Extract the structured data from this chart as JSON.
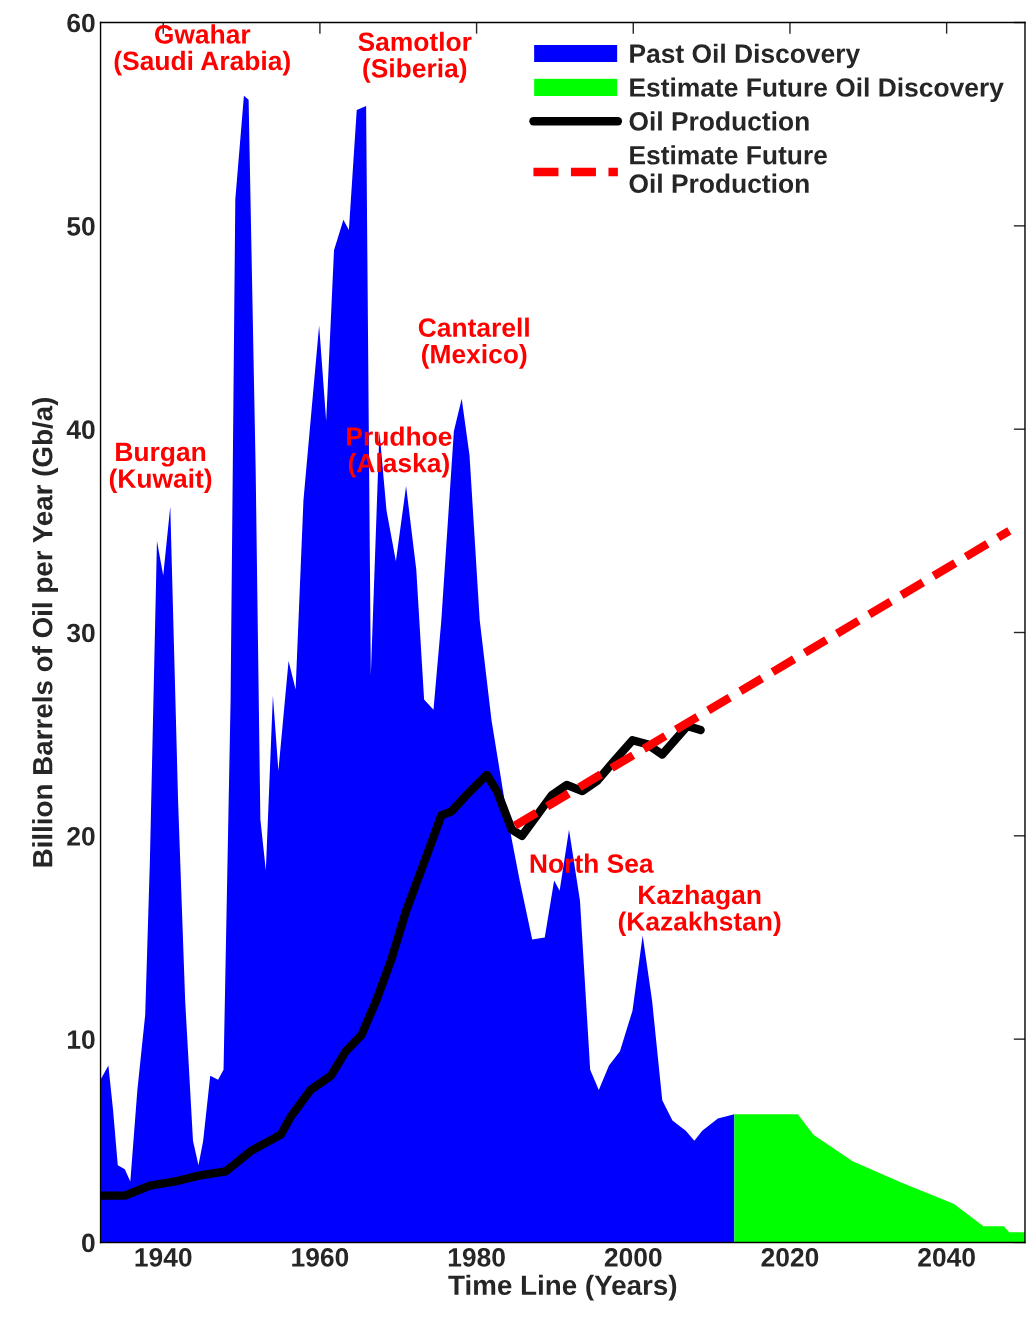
{
  "chart_data": {
    "type": "area",
    "xlabel": "Time Line (Years)",
    "ylabel": "Billion Barrels of Oil per Year (Gb/a)",
    "xlim": [
      1932,
      2050
    ],
    "ylim": [
      0,
      60
    ],
    "xticks": [
      1940,
      1960,
      1980,
      2000,
      2020,
      2040
    ],
    "yticks": [
      0,
      10,
      20,
      30,
      40,
      50,
      60
    ],
    "grid": false,
    "legend": "top right",
    "series": [
      {
        "name": "Past Oil Discovery",
        "color": "#0000ff",
        "x": [
          1932,
          1933,
          1933.6,
          1934.2,
          1935.1,
          1935.8,
          1936.7,
          1937.7,
          1938.3,
          1939.2,
          1940,
          1940.9,
          1941.9,
          1942.8,
          1943.8,
          1944.5,
          1945.1,
          1946,
          1947,
          1947.7,
          1948.6,
          1949.2,
          1950.3,
          1950.9,
          1951.8,
          1952.4,
          1953.1,
          1954,
          1954.7,
          1956,
          1956.9,
          1957.9,
          1959.9,
          1960.8,
          1961.8,
          1963,
          1963.7,
          1964.7,
          1965.9,
          1966.5,
          1967.6,
          1968.5,
          1969.7,
          1971,
          1972.3,
          1973.3,
          1974.5,
          1975.5,
          1977.1,
          1978.1,
          1979.1,
          1980.4,
          1981.9,
          1983.8,
          1985.5,
          1987.1,
          1988.7,
          1989.9,
          1990.6,
          1991.8,
          1993.2,
          1994.5,
          1995.6,
          1996.9,
          1998.3,
          1999.9,
          2001.2,
          2002.4,
          2003.7,
          2005,
          2006.7,
          2007.8,
          2008.8,
          2010.8,
          2012.9
        ],
        "values": [
          8.0,
          8.7,
          6.5,
          3.8,
          3.6,
          3.0,
          7.5,
          11.2,
          18.8,
          34.5,
          32.8,
          36.2,
          21.7,
          11.9,
          5.0,
          3.8,
          5.0,
          8.2,
          8.0,
          8.5,
          26.7,
          51.3,
          56.4,
          56.2,
          38.0,
          20.8,
          18.3,
          26.9,
          23.2,
          28.6,
          27.2,
          36.5,
          45.1,
          40.4,
          48.8,
          50.3,
          49.8,
          55.7,
          55.9,
          27.9,
          39.9,
          36.0,
          33.5,
          37.2,
          33.1,
          26.7,
          26.2,
          30.6,
          39.9,
          41.5,
          38.7,
          30.6,
          25.7,
          21.2,
          17.8,
          14.9,
          15.0,
          17.8,
          17.3,
          20.3,
          16.8,
          8.5,
          7.5,
          8.7,
          9.4,
          11.4,
          15.1,
          11.9,
          7.0,
          6.0,
          5.5,
          5.0,
          5.5,
          6.1,
          6.3
        ]
      },
      {
        "name": "Estimate Future Oil Discovery",
        "color": "#00ff00",
        "x": [
          2012.9,
          2021,
          2023,
          2028,
          2034.5,
          2040.9,
          2044.7,
          2047.3,
          2048,
          2050
        ],
        "values": [
          6.3,
          6.3,
          5.3,
          4.0,
          2.9,
          1.9,
          0.8,
          0.8,
          0.5,
          0.5
        ]
      },
      {
        "name": "Oil Production",
        "type": "line",
        "color": "#000000",
        "line_style": "solid",
        "x": [
          1932,
          1935.1,
          1938.3,
          1941.5,
          1944.7,
          1948,
          1951.2,
          1955,
          1956.3,
          1958.8,
          1961.4,
          1963.3,
          1965.3,
          1967.2,
          1969.1,
          1971,
          1973.6,
          1975.5,
          1976.8,
          1978.7,
          1981.3,
          1982.6,
          1984.5,
          1985.8,
          1987.7,
          1989.6,
          1991.5,
          1993.5,
          1995.4,
          1997.6,
          1999.9,
          2001.8,
          2003.7,
          2005.3,
          2006.9,
          2008.6
        ],
        "values": [
          2.3,
          2.3,
          2.8,
          3.0,
          3.3,
          3.5,
          4.5,
          5.3,
          6.2,
          7.5,
          8.2,
          9.4,
          10.2,
          11.9,
          13.9,
          16.3,
          19.0,
          21.0,
          21.2,
          22.0,
          23.0,
          22.2,
          20.3,
          20.0,
          21.0,
          22.0,
          22.5,
          22.2,
          22.7,
          23.7,
          24.7,
          24.5,
          24.0,
          24.7,
          25.4,
          25.2
        ]
      },
      {
        "name": "Estimate Future\nOil Production",
        "type": "line",
        "color": "#ff0000",
        "line_style": "dashed",
        "x": [
          1984.9,
          2048
        ],
        "values": [
          20.5,
          35.0
        ]
      }
    ],
    "annotations": [
      {
        "text": "Burgan\n(Kuwait)",
        "x": 1940.9,
        "y": 36.2
      },
      {
        "text": "Gwahar\n(Saudi Arabia)",
        "x": 1950.3,
        "y": 56.4
      },
      {
        "text": "Samotlor\n(Siberia)",
        "x": 1965.9,
        "y": 55.9
      },
      {
        "text": "Cantarell\n(Mexico)",
        "x": 1978.1,
        "y": 41.5
      },
      {
        "text": "Prudhoe\n(Alaska)",
        "x": 1967.6,
        "y": 39.9
      },
      {
        "text": "North Sea",
        "x": 1991.8,
        "y": 20.3
      },
      {
        "text": "Kazhagan\n(Kazakhstan)",
        "x": 2001.2,
        "y": 15.1
      }
    ]
  }
}
